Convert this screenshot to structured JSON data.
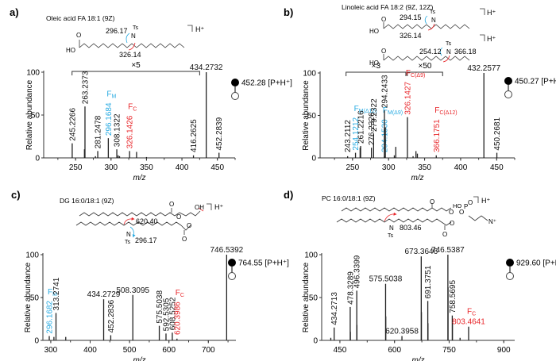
{
  "colors": {
    "fm": "#29abe2",
    "fc": "#e8262a",
    "axis": "#333333",
    "peak": "#222222"
  },
  "chart_data": [
    {
      "type": "bar",
      "panel": "a)",
      "title": "Oleic acid FA 18:1 (9Z)",
      "structure_labels": {
        "m": "296.17",
        "c": "326.14",
        "ts": "Ts",
        "n": "N",
        "ion": "H⁺",
        "acid": "HO",
        "o": "O"
      },
      "xlabel": "m/z",
      "ylabel": "Relative abundance",
      "xlim": [
        205,
        475
      ],
      "ylim": [
        0,
        100
      ],
      "xticks": [
        250,
        300,
        350,
        400,
        450
      ],
      "yticks": [
        0,
        50,
        100
      ],
      "precursor": "452.28 [P+H⁺]",
      "brackets": [
        {
          "label": "×5",
          "from": 245,
          "to": 425
        }
      ],
      "peaks": [
        {
          "mz": 245.2266,
          "y": 17,
          "label": "245.2266",
          "cls": "k"
        },
        {
          "mz": 263.2373,
          "y": 60,
          "label": "263.2373",
          "cls": "k"
        },
        {
          "mz": 262.5,
          "y": 10,
          "label": "",
          "cls": "k"
        },
        {
          "mz": 281.2478,
          "y": 8,
          "label": "281.2478",
          "cls": "k"
        },
        {
          "mz": 278.0,
          "y": 2,
          "label": "",
          "cls": "k"
        },
        {
          "mz": 296.1684,
          "y": 23,
          "label": "296.1684",
          "cls": "fm",
          "tag": "F",
          "sub": "M"
        },
        {
          "mz": 308.1322,
          "y": 10,
          "label": "308.1322",
          "cls": "k"
        },
        {
          "mz": 310.0,
          "y": 3,
          "label": "",
          "cls": "k"
        },
        {
          "mz": 312.0,
          "y": 2,
          "label": "",
          "cls": "k"
        },
        {
          "mz": 326.1426,
          "y": 8,
          "label": "326.1426",
          "cls": "fc",
          "tag": "F",
          "sub": "C"
        },
        {
          "mz": 336.0,
          "y": 7,
          "label": "",
          "cls": "k"
        },
        {
          "mz": 350.0,
          "y": 1,
          "label": "",
          "cls": "k"
        },
        {
          "mz": 416.2625,
          "y": 3,
          "label": "416.2625",
          "cls": "k"
        },
        {
          "mz": 434.2732,
          "y": 100,
          "label": "434.2732",
          "cls": "k",
          "top": true
        },
        {
          "mz": 452.2839,
          "y": 6,
          "label": "452.2839",
          "cls": "k"
        }
      ]
    },
    {
      "type": "bar",
      "panel": "b)",
      "title": "Linoleic acid FA 18:2 (9Z, 12Z)",
      "structure_labels": {
        "m1": "294.15",
        "c1": "326.14",
        "m2": "254.12",
        "c2": "366.18",
        "ts": "Ts",
        "n": "N",
        "ion": "H⁺",
        "acid": "HO",
        "o": "O"
      },
      "xlabel": "m/z",
      "ylabel": "Relative abundance",
      "xlim": [
        205,
        475
      ],
      "ylim": [
        0,
        100
      ],
      "xticks": [
        250,
        300,
        350,
        400,
        450
      ],
      "yticks": [
        0,
        50,
        100
      ],
      "precursor": "450.27 [P+H⁺]",
      "brackets": [
        {
          "label": "×3",
          "from": 241,
          "to": 324
        },
        {
          "label": "×50",
          "from": 326,
          "to": 375
        }
      ],
      "peaks": [
        {
          "mz": 243.2112,
          "y": 2,
          "label": "243.2112",
          "cls": "k"
        },
        {
          "mz": 254.1212,
          "y": 6,
          "label": "254.1212",
          "cls": "fm",
          "tag": "F",
          "sub": "M(Δ12)"
        },
        {
          "mz": 261.2216,
          "y": 14,
          "label": "261.2216",
          "cls": "k"
        },
        {
          "mz": 260.5,
          "y": 12,
          "label": "",
          "cls": "k"
        },
        {
          "mz": 276.2326,
          "y": 12,
          "label": "276.2326",
          "cls": "k"
        },
        {
          "mz": 279.2322,
          "y": 28,
          "label": "279.2322",
          "cls": "k"
        },
        {
          "mz": 294.153,
          "y": 2,
          "label": "294.1530",
          "cls": "fm",
          "tag": "F",
          "sub": "M(Δ9)"
        },
        {
          "mz": 294.2433,
          "y": 56,
          "label": "294.2433",
          "cls": "k"
        },
        {
          "mz": 295.5,
          "y": 36,
          "label": "",
          "cls": "k"
        },
        {
          "mz": 308.0,
          "y": 3,
          "label": "",
          "cls": "k"
        },
        {
          "mz": 310.0,
          "y": 13,
          "label": "",
          "cls": "k"
        },
        {
          "mz": 326.1427,
          "y": 48,
          "label": "326.1427",
          "cls": "fc",
          "tag": "F",
          "sub": "C(Δ9)"
        },
        {
          "mz": 334.0,
          "y": 2,
          "label": "",
          "cls": "k"
        },
        {
          "mz": 338.0,
          "y": 8,
          "label": "",
          "cls": "k"
        },
        {
          "mz": 340.0,
          "y": 5,
          "label": "",
          "cls": "k"
        },
        {
          "mz": 366.1751,
          "y": 3,
          "label": "366.1751",
          "cls": "fc",
          "tag": "F",
          "sub": "C(Δ12)"
        },
        {
          "mz": 432.2577,
          "y": 100,
          "label": "432.2577",
          "cls": "k",
          "top": true
        },
        {
          "mz": 450.2681,
          "y": 6,
          "label": "450.2681",
          "cls": "k"
        }
      ]
    },
    {
      "type": "bar",
      "panel": "c)",
      "title": "DG 16:0/18:1 (9Z)",
      "structure_labels": {
        "m": "296.17",
        "c": "620.40",
        "ts": "Ts",
        "n": "N",
        "ion": "H⁺",
        "oh": "OH",
        "o": "O"
      },
      "xlabel": "m/z",
      "ylabel": "Relative abundance",
      "xlim": [
        280,
        770
      ],
      "ylim": [
        0,
        100
      ],
      "xticks": [
        300,
        400,
        500,
        600,
        700
      ],
      "yticks": [
        0,
        50,
        100
      ],
      "precursor": "764.55 [P+H⁺]",
      "brackets": [],
      "peaks": [
        {
          "mz": 296.1682,
          "y": 5,
          "label": "296.1682",
          "cls": "fm",
          "tag": "F",
          "sub": "M"
        },
        {
          "mz": 308.0,
          "y": 4,
          "label": "",
          "cls": "k"
        },
        {
          "mz": 313.2741,
          "y": 32,
          "label": "313.2741",
          "cls": "k"
        },
        {
          "mz": 338.0,
          "y": 4,
          "label": "",
          "cls": "k"
        },
        {
          "mz": 434.2729,
          "y": 48,
          "label": "434.2729",
          "cls": "k",
          "top": true
        },
        {
          "mz": 452.2836,
          "y": 6,
          "label": "452.2836",
          "cls": "k"
        },
        {
          "mz": 508.3095,
          "y": 53,
          "label": "508.3095",
          "cls": "k",
          "top": true
        },
        {
          "mz": 575.5038,
          "y": 17,
          "label": "575.5038",
          "cls": "k"
        },
        {
          "mz": 592.5305,
          "y": 8,
          "label": "592.5305",
          "cls": "k"
        },
        {
          "mz": 608.5252,
          "y": 9,
          "label": "608.5252",
          "cls": "k"
        },
        {
          "mz": 620.3986,
          "y": 2,
          "label": "620.3986",
          "cls": "fc",
          "tag": "F",
          "sub": "C"
        },
        {
          "mz": 746.5392,
          "y": 100,
          "label": "746.5392",
          "cls": "k",
          "top": true
        }
      ]
    },
    {
      "type": "bar",
      "panel": "d)",
      "title": "PC 16:0/18:1 (9Z)",
      "structure_labels": {
        "c": "803.46",
        "ts": "Ts",
        "n": "N",
        "ion": "H⁺",
        "ho": "HO",
        "p": "P",
        "o": "O",
        "np": "N⁺"
      },
      "xlabel": "m/z",
      "ylabel": "Relative abundance",
      "xlim": [
        400,
        930
      ],
      "ylim": [
        0,
        100
      ],
      "xticks": [
        450,
        600,
        750,
        900
      ],
      "yticks": [
        0,
        50,
        100
      ],
      "precursor": "929.60 [P+H⁺]",
      "brackets": [],
      "peaks": [
        {
          "mz": 425.0,
          "y": 3,
          "label": "",
          "cls": "k"
        },
        {
          "mz": 434.2713,
          "y": 15,
          "label": "434.2713",
          "cls": "k"
        },
        {
          "mz": 478.3289,
          "y": 39,
          "label": "478.3289",
          "cls": "k"
        },
        {
          "mz": 478.8,
          "y": 10,
          "label": "",
          "cls": "k"
        },
        {
          "mz": 496.3399,
          "y": 58,
          "label": "496.3399",
          "cls": "k"
        },
        {
          "mz": 496.8,
          "y": 18,
          "label": "",
          "cls": "k"
        },
        {
          "mz": 575.5038,
          "y": 66,
          "label": "575.5038",
          "cls": "k",
          "top": true
        },
        {
          "mz": 576.0,
          "y": 28,
          "label": "",
          "cls": "k"
        },
        {
          "mz": 620.3958,
          "y": 5,
          "label": "620.3958",
          "cls": "k",
          "top": true
        },
        {
          "mz": 673.3646,
          "y": 98,
          "label": "673.3646",
          "cls": "k",
          "top": true
        },
        {
          "mz": 673.9,
          "y": 33,
          "label": "",
          "cls": "k"
        },
        {
          "mz": 691.3751,
          "y": 46,
          "label": "691.3751",
          "cls": "k"
        },
        {
          "mz": 691.9,
          "y": 20,
          "label": "",
          "cls": "k"
        },
        {
          "mz": 746.5387,
          "y": 100,
          "label": "746.5387",
          "cls": "k",
          "top": true
        },
        {
          "mz": 747.0,
          "y": 62,
          "label": "",
          "cls": "k"
        },
        {
          "mz": 758.5695,
          "y": 29,
          "label": "758.5695",
          "cls": "k"
        },
        {
          "mz": 759.1,
          "y": 24,
          "label": "",
          "cls": "k"
        },
        {
          "mz": 780.0,
          "y": 3,
          "label": "",
          "cls": "k"
        },
        {
          "mz": 803.4641,
          "y": 16,
          "label": "803.4641",
          "cls": "fc",
          "tag": "F",
          "sub": "C",
          "top": true
        }
      ]
    }
  ]
}
